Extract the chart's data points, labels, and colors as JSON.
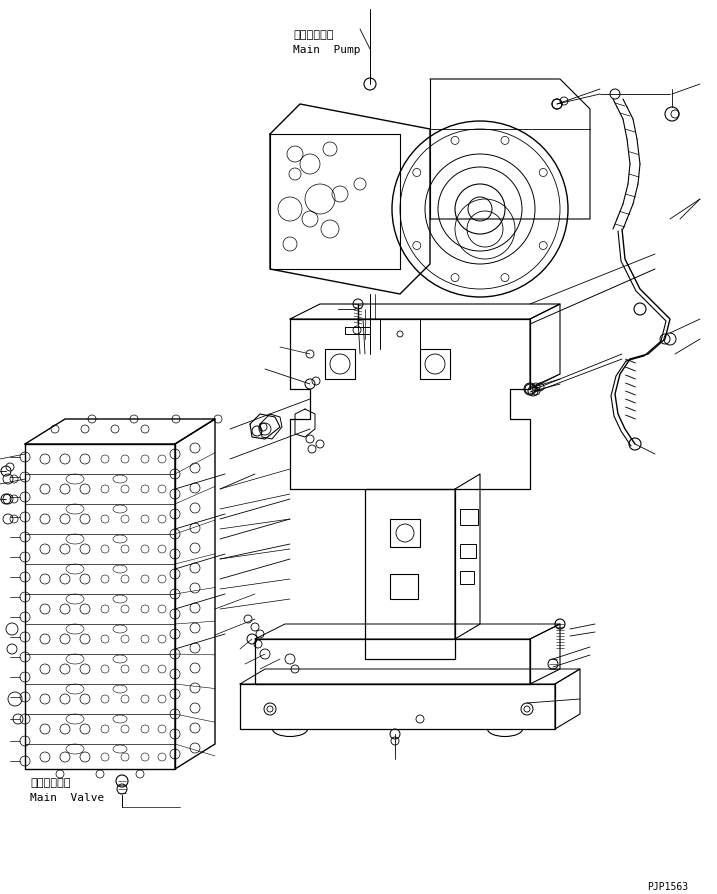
{
  "bg_color": "#ffffff",
  "line_color": "#000000",
  "figure_size": [
    7.17,
    8.95
  ],
  "dpi": 100,
  "title_main_pump_jp": "メインポンプ",
  "title_main_pump_en": "Main  Pump",
  "title_main_valve_jp": "メインバルブ",
  "title_main_valve_en": "Main  Valve",
  "part_number": "PJP1563"
}
